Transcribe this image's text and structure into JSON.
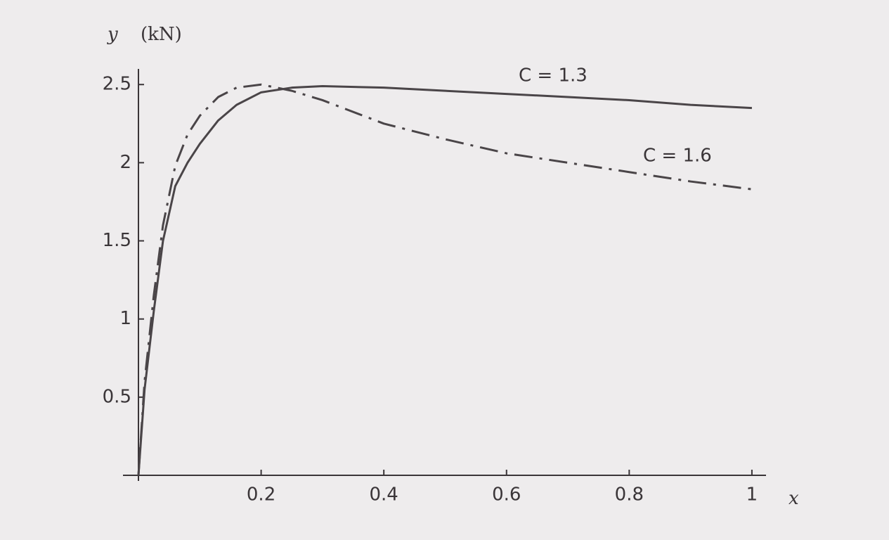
{
  "chart_data": {
    "type": "line",
    "xlabel": "x",
    "ylabel": "y",
    "yunit": "(kN)",
    "x": [
      0,
      0.01,
      0.025,
      0.04,
      0.06,
      0.08,
      0.1,
      0.13,
      0.16,
      0.2,
      0.25,
      0.3,
      0.4,
      0.5,
      0.6,
      0.7,
      0.8,
      0.9,
      1.0
    ],
    "series": [
      {
        "name": "C = 1.3",
        "color": "#4a4548",
        "dash": "solid",
        "values": [
          0,
          0.55,
          1.05,
          1.5,
          1.85,
          2.0,
          2.12,
          2.27,
          2.37,
          2.45,
          2.48,
          2.49,
          2.48,
          2.46,
          2.44,
          2.42,
          2.4,
          2.37,
          2.35
        ]
      },
      {
        "name": "C = 1.6",
        "color": "#4a4548",
        "dash": "dashdot",
        "values": [
          0,
          0.6,
          1.15,
          1.6,
          1.98,
          2.18,
          2.3,
          2.42,
          2.48,
          2.5,
          2.46,
          2.4,
          2.25,
          2.15,
          2.06,
          2.0,
          1.94,
          1.88,
          1.83
        ]
      }
    ],
    "xlim": [
      0,
      1.023
    ],
    "ylim": [
      0,
      2.6
    ],
    "xticks": [
      0.2,
      0.4,
      0.6,
      0.8,
      1
    ],
    "yticks": [
      0.5,
      1,
      1.5,
      2,
      2.5
    ],
    "grid": false
  }
}
